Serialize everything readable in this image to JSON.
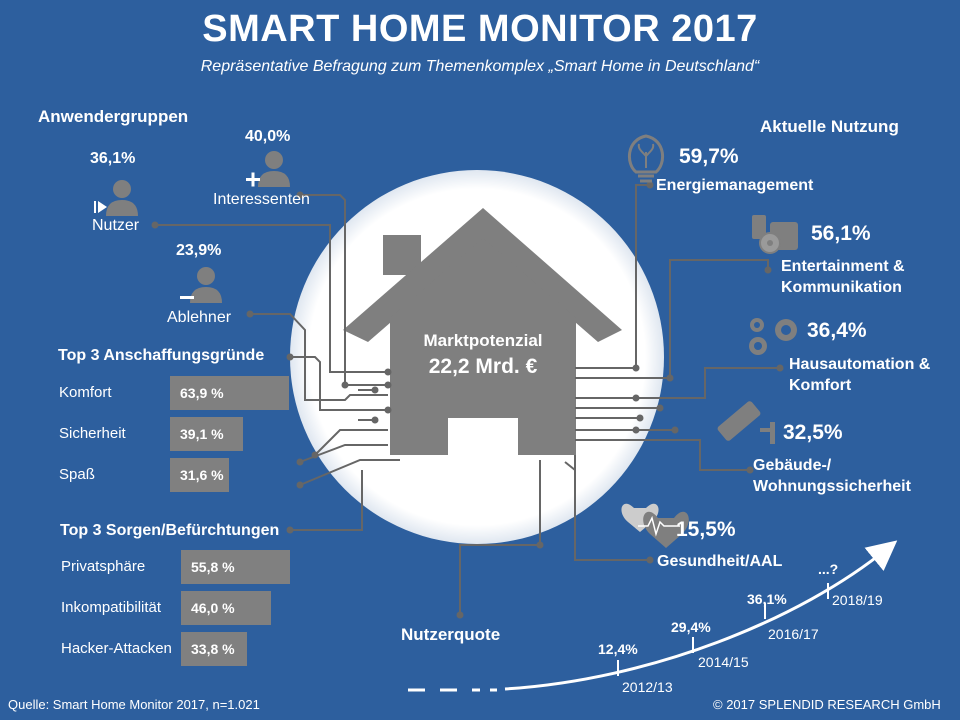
{
  "header": {
    "title": "SMART HOME MONITOR 2017",
    "subtitle": "Repräsentative Befragung zum Themenkomplex „Smart Home in Deutschland“"
  },
  "center": {
    "label": "Marktpotenzial",
    "value": "22,2 Mrd. €"
  },
  "user_groups": {
    "heading": "Anwendergruppen",
    "items": [
      {
        "pct": "36,1%",
        "label": "Nutzer",
        "icon": "user-play-icon"
      },
      {
        "pct": "40,0%",
        "label": "Interessenten",
        "icon": "user-plus-icon"
      },
      {
        "pct": "23,9%",
        "label": "Ablehner",
        "icon": "user-minus-icon"
      }
    ]
  },
  "reasons": {
    "heading": "Top 3 Anschaffungsgründe",
    "items": [
      {
        "label": "Komfort",
        "value": "63,9 %",
        "pct": 63.9
      },
      {
        "label": "Sicherheit",
        "value": "39,1 %",
        "pct": 39.1
      },
      {
        "label": "Spaß",
        "value": "31,6 %",
        "pct": 31.6
      }
    ]
  },
  "concerns": {
    "heading": "Top 3 Sorgen/Befürchtungen",
    "items": [
      {
        "label": "Privatsphäre",
        "value": "55,8 %",
        "pct": 55.8
      },
      {
        "label": "Inkompatibilität",
        "value": "46,0 %",
        "pct": 46.0
      },
      {
        "label": "Hacker-Attacken",
        "value": "33,8 %",
        "pct": 33.8
      }
    ]
  },
  "usage": {
    "heading": "Aktuelle Nutzung",
    "items": [
      {
        "pct": "59,7%",
        "label": "Energiemanagement",
        "icon": "lightbulb-icon"
      },
      {
        "pct": "56,1%",
        "label": "Entertainment & Kommunikation",
        "icon": "media-devices-icon"
      },
      {
        "pct": "36,4%",
        "label": "Hausautomation & Komfort",
        "icon": "gears-icon"
      },
      {
        "pct": "32,5%",
        "label": "Gebäude-/ Wohnungssicherheit",
        "icon": "security-camera-icon"
      },
      {
        "pct": "15,5%",
        "label": "Gesundheit/AAL",
        "icon": "heart-pulse-icon"
      }
    ]
  },
  "user_rate": {
    "heading": "Nutzerquote",
    "points": [
      {
        "value": "12,4%",
        "period": "2012/13"
      },
      {
        "value": "29,4%",
        "period": "2014/15"
      },
      {
        "value": "36,1%",
        "period": "2016/17"
      },
      {
        "value": "...?",
        "period": "2018/19"
      }
    ]
  },
  "footer": {
    "source": "Quelle: Smart Home Monitor 2017, n=1.021",
    "copyright": "© 2017 SPLENDID RESEARCH GmbH"
  },
  "colors": {
    "background": "#2d5f9e",
    "glow": "#ffffff",
    "house": "#7f7f7f",
    "bar": "#808080",
    "circuit": "#666666"
  }
}
